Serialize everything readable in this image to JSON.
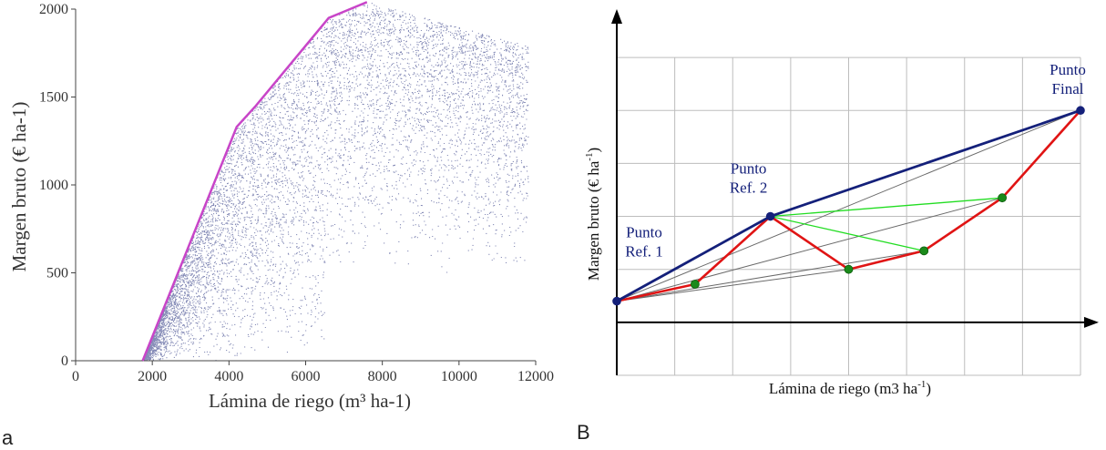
{
  "panels": {
    "a": {
      "label": "a"
    },
    "b": {
      "label": "B"
    }
  },
  "colors": {
    "scatter": "#1f2a7a",
    "frontier_a": "#c845c8",
    "frontier_b": "#14207a",
    "path_red": "#e01414",
    "links_green": "#22dd22",
    "points_green": "#1a8a1a",
    "grid": "#bdbdbd",
    "thin_links": "#6a6a6a"
  },
  "chart_data": [
    {
      "panel": "a",
      "type": "scatter",
      "xlabel": "Lámina de riego (m³ ha-1)",
      "ylabel": "Margen bruto (€ ha-1)",
      "xlim": [
        0,
        12000
      ],
      "ylim": [
        0,
        2000
      ],
      "xticks": [
        0,
        2000,
        4000,
        6000,
        8000,
        10000,
        12000
      ],
      "yticks": [
        0,
        500,
        1000,
        1500,
        2000
      ],
      "tick_labels_x": [
        "0",
        "2000",
        "4000",
        "6000",
        "8000",
        "10000",
        "12000"
      ],
      "tick_labels_y": [
        "0",
        "500",
        "1000",
        "1500",
        "2000"
      ],
      "scatter_envelope": {
        "x_min": 1700,
        "x_max": 11800,
        "points_approx": 12000
      },
      "series": [
        {
          "x": [
            1750,
            4200,
            4700,
            6600,
            7600
          ],
          "y": [
            0,
            1330,
            1450,
            1950,
            2040
          ]
        }
      ]
    },
    {
      "panel": "B",
      "type": "line",
      "xlabel": "Lámina de riego (m3 ha",
      "xlabel_sup": "-1",
      "xlabel_end": ")",
      "ylabel": "Margen bruto (€ ha",
      "ylabel_sup": "-1",
      "ylabel_end": ")",
      "xlim": [
        0,
        8
      ],
      "ylim": [
        -1,
        5.5
      ],
      "grid": true,
      "points": [
        {
          "label": [
            "Punto",
            "Ref. 1"
          ],
          "x": 0,
          "y": 0.4
        },
        {
          "label": [
            "Punto",
            "Ref. 2"
          ],
          "x": 2.65,
          "y": 2.0
        },
        {
          "label": [
            "Punto",
            "Final"
          ],
          "x": 8,
          "y": 4.0
        }
      ],
      "series": [
        {
          "x": [
            0,
            2.65,
            8
          ],
          "y": [
            0.4,
            2.0,
            4.0
          ]
        },
        {
          "x": [
            0,
            1.35,
            2.65,
            4.0,
            5.3,
            6.65,
            8
          ],
          "y": [
            0.4,
            0.72,
            2.0,
            1.0,
            1.35,
            2.35,
            4.0
          ]
        },
        {
          "x": [
            2.65,
            6.65,
            2.65,
            5.3
          ],
          "y": [
            2.0,
            2.35,
            2.0,
            1.35
          ]
        },
        {
          "x": [
            1.35,
            4.0,
            5.3,
            6.65
          ],
          "y": [
            0.72,
            1.0,
            1.35,
            2.35
          ]
        }
      ]
    }
  ]
}
